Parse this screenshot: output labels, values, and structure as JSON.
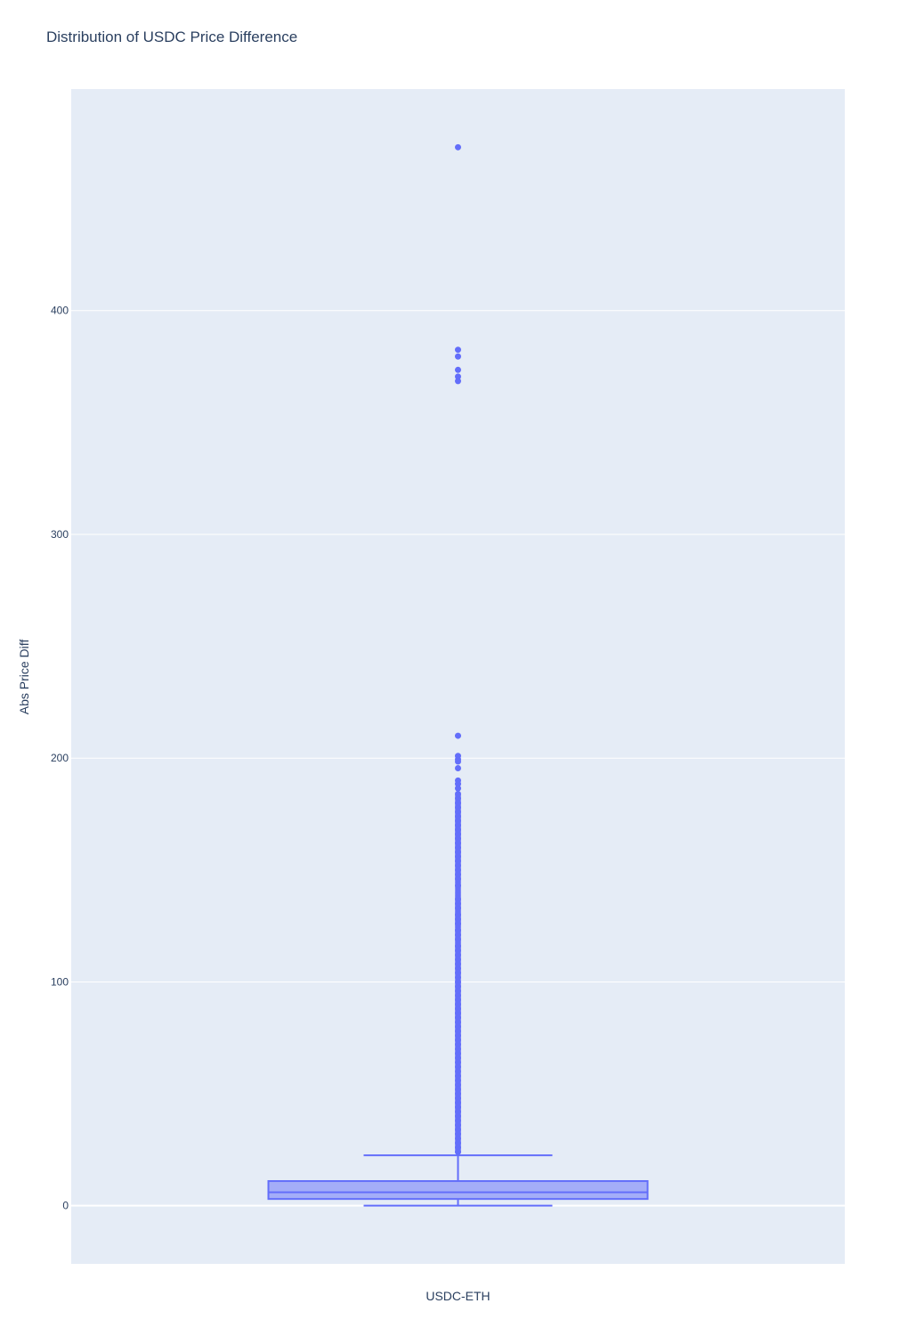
{
  "chart_data": {
    "type": "box",
    "title": "Distribution of USDC Price Difference",
    "xlabel": "",
    "ylabel": "Abs Price Diff",
    "ylim": [
      -26,
      499
    ],
    "yticks": [
      0,
      100,
      200,
      300,
      400
    ],
    "ytick_labels": [
      "0",
      "100",
      "200",
      "300",
      "400"
    ],
    "categories": [
      "USDC-ETH"
    ],
    "grid": true,
    "colors": {
      "accent": "#636efa",
      "plot_bg": "#e5ecf6",
      "grid": "#ffffff",
      "text": "#2a3f5f"
    },
    "series": [
      {
        "category": "USDC-ETH",
        "lower_whisker": 0,
        "q1": 3,
        "median": 6,
        "q3": 11,
        "upper_whisker": 22.5,
        "outliers": [
          473,
          382.5,
          379.5,
          373.5,
          370.5,
          368.5,
          210,
          201,
          199.5,
          198.5,
          195.5,
          190,
          188.5,
          186.5,
          184,
          182,
          180,
          178,
          176,
          174,
          172,
          170,
          168,
          166,
          164,
          162,
          160,
          158,
          156,
          154,
          152,
          150,
          148,
          146,
          143,
          137,
          135,
          133,
          130,
          128,
          126,
          123,
          121,
          119,
          116,
          114,
          112,
          110,
          108,
          106,
          104,
          102,
          100,
          98,
          96,
          94,
          92,
          90,
          88,
          86,
          84,
          82,
          80,
          78,
          76,
          74,
          72,
          70,
          68,
          66,
          64,
          62,
          60,
          58,
          56,
          54,
          52,
          50,
          48,
          46,
          44,
          42,
          40,
          38,
          36,
          34,
          32,
          30,
          28,
          26,
          24
        ]
      }
    ]
  }
}
